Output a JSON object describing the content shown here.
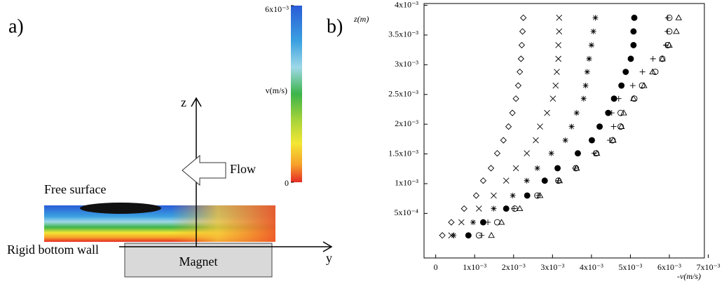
{
  "panel_a": {
    "label": "a)",
    "z_axis": "z",
    "y_axis": "y",
    "flow": "Flow",
    "free_surface": "Free surface",
    "wall": "Rigid bottom wall",
    "magnet": "Magnet",
    "colorbar": {
      "label": "v(m/s)",
      "ticks": [
        {
          "value": 0.006,
          "label": "6x10⁻³"
        },
        0
      ]
    }
  },
  "chart_data": {
    "type": "scatter",
    "panel_label": "b)",
    "x_label": "-v(m/s)",
    "y_label": "z(m)",
    "xlim": [
      -0.0003,
      0.0069
    ],
    "ylim": [
      -0.00025,
      0.00403
    ],
    "xticks": [
      0,
      {
        "value": 0.001,
        "label": "1x10⁻³"
      },
      {
        "value": 0.002,
        "label": "2x10⁻³"
      },
      {
        "value": 0.003,
        "label": "3x10⁻³"
      },
      {
        "value": 0.004,
        "label": "4x10⁻³"
      },
      {
        "value": 0.005,
        "label": "5x10⁻³"
      },
      {
        "value": 0.006,
        "label": "6x10⁻³"
      },
      {
        "value": 0.007,
        "label": "7x10⁻³"
      }
    ],
    "yticks": [
      {
        "value": 0.0005,
        "label": "5x10⁻⁴"
      },
      {
        "value": 0.001,
        "label": "1x10⁻³"
      },
      {
        "value": 0.0015,
        "label": "1.5x10⁻³"
      },
      {
        "value": 0.002,
        "label": "2x10⁻³"
      },
      {
        "value": 0.0025,
        "label": "2.5x10⁻³"
      },
      {
        "value": 0.003,
        "label": "3x10⁻³"
      },
      {
        "value": 0.0035,
        "label": "3.5x10⁻³"
      },
      {
        "value": 0.004,
        "label": "4x10⁻³"
      }
    ],
    "series": [
      {
        "marker": "diamond",
        "color": "#000000",
        "x": [
          0.00017,
          0.0004,
          0.00073,
          0.00104,
          0.00122,
          0.00142,
          0.00158,
          0.00174,
          0.00187,
          0.00197,
          0.00206,
          0.00212,
          0.00216,
          0.00219,
          0.00221,
          0.00223,
          0.00225
        ],
        "y": [
          0.00013,
          0.00035,
          0.00058,
          0.0008,
          0.00105,
          0.00126,
          0.00151,
          0.00173,
          0.00196,
          0.00219,
          0.00243,
          0.00265,
          0.00288,
          0.0031,
          0.00333,
          0.00356,
          0.00379
        ]
      },
      {
        "marker": "cross",
        "color": "#000000",
        "x": [
          0.0004,
          0.00066,
          0.00111,
          0.00149,
          0.00181,
          0.00206,
          0.00234,
          0.00257,
          0.00268,
          0.00286,
          0.00301,
          0.00308,
          0.00311,
          0.00315,
          0.00315,
          0.00317,
          0.00317
        ],
        "y": [
          0.00013,
          0.00035,
          0.00058,
          0.0008,
          0.00105,
          0.00126,
          0.00151,
          0.00173,
          0.00196,
          0.00219,
          0.00243,
          0.00265,
          0.00288,
          0.0031,
          0.00333,
          0.00356,
          0.00379
        ]
      },
      {
        "marker": "asterisk",
        "color": "#000000",
        "x": [
          0.00046,
          0.00096,
          0.00149,
          0.00198,
          0.00234,
          0.00261,
          0.00297,
          0.00333,
          0.00349,
          0.00362,
          0.0038,
          0.00385,
          0.00389,
          0.00394,
          0.004,
          0.00405,
          0.0041
        ],
        "y": [
          0.00013,
          0.00035,
          0.00058,
          0.0008,
          0.00105,
          0.00126,
          0.00151,
          0.00173,
          0.00196,
          0.00219,
          0.00243,
          0.00265,
          0.00288,
          0.0031,
          0.00333,
          0.00356,
          0.00379
        ]
      },
      {
        "marker": "dot",
        "color": "#000000",
        "x": [
          0.00084,
          0.00122,
          0.00181,
          0.00235,
          0.0028,
          0.00313,
          0.00365,
          0.00401,
          0.00421,
          0.00443,
          0.00458,
          0.00477,
          0.00488,
          0.00501,
          0.00508,
          0.00508,
          0.0051
        ],
        "y": [
          0.00013,
          0.00035,
          0.00058,
          0.0008,
          0.00105,
          0.00126,
          0.00151,
          0.00173,
          0.00196,
          0.00219,
          0.00243,
          0.00265,
          0.00288,
          0.0031,
          0.00333,
          0.00356,
          0.00379
        ]
      },
      {
        "marker": "plus",
        "color": "#000000",
        "x": [
          0.00118,
          0.00134,
          0.00201,
          0.00263,
          0.00315,
          0.00358,
          0.00407,
          0.00447,
          0.00457,
          0.00452,
          0.0047,
          0.00506,
          0.00531,
          0.00558,
          0.00591,
          0.00595,
          0.00596
        ],
        "y": [
          0.00013,
          0.00035,
          0.00058,
          0.0008,
          0.00105,
          0.00126,
          0.00151,
          0.00173,
          0.00196,
          0.00219,
          0.00243,
          0.00265,
          0.00288,
          0.0031,
          0.00333,
          0.00356,
          0.00379
        ]
      },
      {
        "marker": "circle",
        "color": "#000000",
        "x": [
          0.00111,
          0.00158,
          0.00203,
          0.00261,
          0.00315,
          0.0036,
          0.00412,
          0.00454,
          0.00475,
          0.00475,
          0.0051,
          0.0053,
          0.00564,
          0.00582,
          0.00596,
          0.006,
          0.006
        ],
        "y": [
          0.00013,
          0.00035,
          0.00058,
          0.0008,
          0.00105,
          0.00126,
          0.00151,
          0.00173,
          0.00196,
          0.00219,
          0.00243,
          0.00265,
          0.00288,
          0.0031,
          0.00333,
          0.00356,
          0.00379
        ]
      },
      {
        "marker": "triangle",
        "color": "#000000",
        "x": [
          0.00143,
          0.00169,
          0.00216,
          0.00268,
          0.00318,
          0.00362,
          0.00414,
          0.00456,
          0.00477,
          0.00483,
          0.00508,
          0.00535,
          0.00557,
          0.00582,
          0.006,
          0.00618,
          0.00624
        ],
        "y": [
          0.00013,
          0.00035,
          0.00058,
          0.0008,
          0.00105,
          0.00126,
          0.00151,
          0.00173,
          0.00196,
          0.00219,
          0.00243,
          0.00265,
          0.00288,
          0.0031,
          0.00333,
          0.00356,
          0.00379
        ]
      }
    ]
  }
}
